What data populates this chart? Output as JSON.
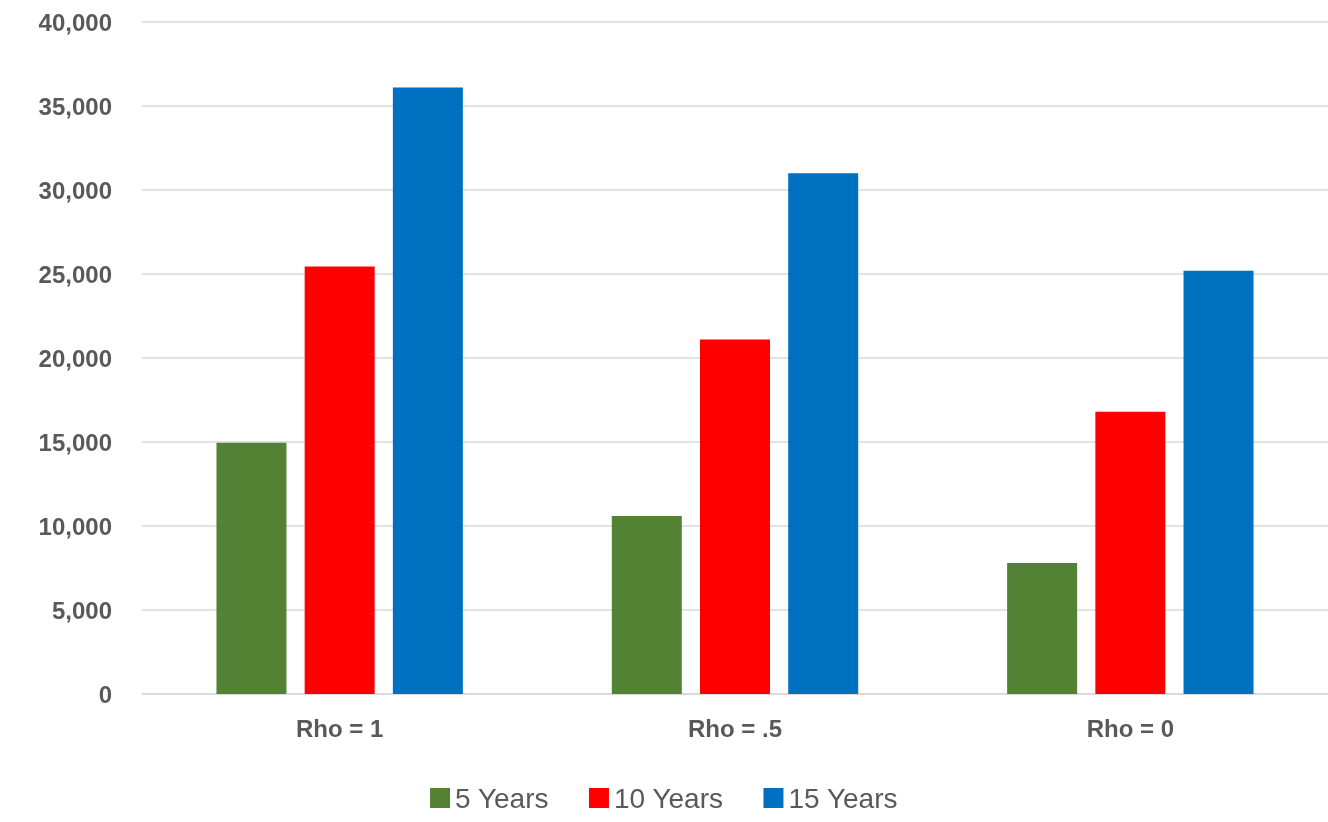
{
  "chart_data": {
    "type": "bar",
    "categories": [
      "Rho = 1",
      "Rho = .5",
      "Rho = 0"
    ],
    "series": [
      {
        "name": "5 Years",
        "color": "#548235",
        "values": [
          14950,
          10600,
          7800
        ]
      },
      {
        "name": "10 Years",
        "color": "#ff0000",
        "values": [
          25450,
          21100,
          16800
        ]
      },
      {
        "name": "15 Years",
        "color": "#0070c0",
        "values": [
          36100,
          31000,
          25200
        ]
      }
    ],
    "ylim": [
      0,
      40000
    ],
    "yticks": [
      {
        "value": 0,
        "label": "0"
      },
      {
        "value": 5000,
        "label": "5,000"
      },
      {
        "value": 10000,
        "label": "10,000"
      },
      {
        "value": 15000,
        "label": "15,000"
      },
      {
        "value": 20000,
        "label": "20,000"
      },
      {
        "value": 25000,
        "label": "25,000"
      },
      {
        "value": 30000,
        "label": "30,000"
      },
      {
        "value": 35000,
        "label": "35,000"
      },
      {
        "value": 40000,
        "label": "40,000"
      }
    ],
    "grid": "y",
    "legend": "bottom"
  }
}
